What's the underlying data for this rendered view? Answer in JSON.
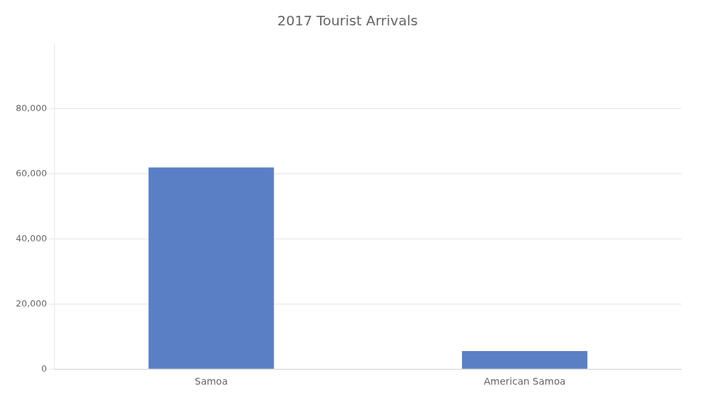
{
  "chart_data": {
    "type": "bar",
    "title": "2017 Tourist Arrivals",
    "categories": [
      "Samoa",
      "American Samoa"
    ],
    "values": [
      62000,
      5500
    ],
    "color": "#5b7fc4",
    "ylim": [
      0,
      100000
    ],
    "yticks": [
      0,
      {
        "value": 20000,
        "label": "20,000"
      },
      {
        "value": 40000,
        "label": "40,000"
      },
      {
        "value": 60000,
        "label": "60,000"
      },
      {
        "value": 80000,
        "label": "80,000"
      }
    ],
    "grid": true
  }
}
